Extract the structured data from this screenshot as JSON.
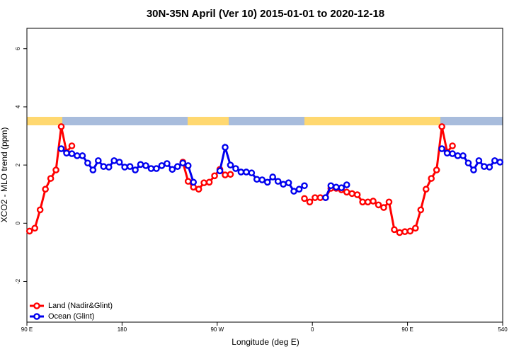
{
  "chart_data": {
    "type": "line",
    "title": "30N-35N April (Ver 10)   2015-01-01 to 2020-12-18",
    "x_label": "Longitude (deg E)",
    "y_label": "XCO2 - MLO trend (ppm)",
    "x": [
      92.5,
      97.5,
      102.5,
      107.5,
      112.5,
      117.5,
      122.5,
      127.5,
      132.5,
      137.5,
      142.5,
      147.5,
      152.5,
      157.5,
      162.5,
      167.5,
      172.5,
      177.5,
      182.5,
      187.5,
      192.5,
      197.5,
      202.5,
      207.5,
      212.5,
      217.5,
      222.5,
      227.5,
      232.5,
      237.5,
      242.5,
      247.5,
      252.5,
      257.5,
      262.5,
      267.5,
      272.5,
      277.5,
      282.5,
      287.5,
      292.5,
      297.5,
      302.5,
      307.5,
      312.5,
      317.5,
      322.5,
      327.5,
      332.5,
      337.5,
      342.5,
      347.5,
      352.5,
      357.5,
      362.5,
      367.5,
      372.5,
      377.5,
      382.5,
      387.5,
      392.5,
      397.5,
      402.5,
      407.5,
      412.5,
      417.5,
      422.5,
      427.5,
      432.5,
      437.5,
      442.5,
      447.5,
      452.5,
      457.5,
      462.5,
      467.5,
      472.5,
      477.5,
      482.5,
      487.5,
      492.5,
      497.5,
      502.5,
      507.5,
      512.5,
      517.5,
      522.5,
      527.5,
      532.5,
      537.5
    ],
    "series": [
      {
        "name": "Land (Nadir&Glint)",
        "color": "#ff0000",
        "values": [
          -0.27,
          -0.17,
          0.46,
          1.17,
          1.54,
          1.83,
          3.32,
          2.45,
          2.66,
          null,
          null,
          null,
          null,
          null,
          null,
          null,
          null,
          null,
          null,
          null,
          null,
          null,
          null,
          null,
          null,
          null,
          null,
          null,
          null,
          2.1,
          1.44,
          1.24,
          1.17,
          1.39,
          1.41,
          1.63,
          1.85,
          1.66,
          1.68,
          null,
          null,
          null,
          null,
          null,
          null,
          null,
          null,
          null,
          null,
          null,
          null,
          null,
          0.85,
          0.73,
          0.88,
          0.88,
          0.88,
          1.2,
          1.2,
          1.15,
          1.07,
          1.02,
          0.98,
          0.73,
          0.73,
          0.76,
          0.63,
          0.54,
          0.73,
          -0.22,
          -0.32,
          -0.29,
          -0.27,
          -0.17,
          0.46,
          1.17,
          1.54,
          1.83,
          3.32,
          2.45,
          2.66,
          null,
          null,
          null,
          null,
          null,
          null,
          null,
          null,
          null
        ]
      },
      {
        "name": "Ocean (Glint)",
        "color": "#0000ee",
        "values": [
          null,
          null,
          null,
          null,
          null,
          null,
          2.56,
          2.41,
          2.39,
          2.32,
          2.32,
          2.07,
          1.83,
          2.15,
          1.95,
          1.93,
          2.15,
          2.1,
          1.93,
          1.95,
          1.83,
          2.02,
          1.98,
          1.88,
          1.88,
          1.98,
          2.05,
          1.85,
          1.95,
          2.07,
          1.98,
          1.41,
          null,
          null,
          null,
          null,
          1.8,
          2.61,
          2.0,
          1.88,
          1.76,
          1.76,
          1.73,
          1.51,
          1.49,
          1.41,
          1.59,
          1.44,
          1.34,
          1.39,
          1.1,
          1.17,
          1.29,
          null,
          null,
          null,
          0.88,
          1.29,
          1.24,
          1.22,
          1.32,
          null,
          null,
          null,
          null,
          null,
          null,
          null,
          null,
          null,
          null,
          null,
          null,
          null,
          null,
          null,
          null,
          null,
          2.56,
          2.41,
          2.39,
          2.32,
          2.32,
          2.07,
          1.83,
          2.15,
          1.95,
          1.93,
          2.15,
          2.1
        ]
      }
    ],
    "xlim": [
      90,
      540
    ],
    "xticks": [
      {
        "value": 90,
        "label": "90 E"
      },
      180,
      {
        "value": 270,
        "label": "90 W"
      },
      {
        "value": 360,
        "label": "0"
      },
      {
        "value": 450,
        "label": "90 E"
      },
      540
    ],
    "ylim": [
      -3.4,
      6.7
    ],
    "yticks": [
      -2,
      0,
      2,
      4,
      6
    ],
    "legend": "bottom-left"
  }
}
